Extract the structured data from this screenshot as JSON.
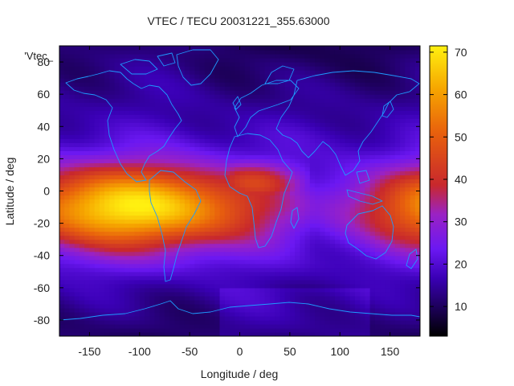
{
  "chart_data": {
    "type": "heatmap",
    "title": "VTEC / TECU 20031221_355.63000",
    "xlabel": "Longitude / deg",
    "ylabel": "Latitude / deg",
    "legend_label": "'Vtec_",
    "xlim": [
      -180,
      180
    ],
    "ylim": [
      -90,
      90
    ],
    "xticks": [
      {
        "value": -150,
        "label": "-150"
      },
      {
        "value": -100,
        "label": "-100"
      },
      {
        "value": -50,
        "label": "-50"
      },
      {
        "value": 0,
        "label": "0"
      },
      {
        "value": 50,
        "label": "50"
      },
      {
        "value": 100,
        "label": "100"
      },
      {
        "value": 150,
        "label": "150"
      }
    ],
    "yticks": [
      {
        "value": 80,
        "label": "80"
      },
      {
        "value": 60,
        "label": "60"
      },
      {
        "value": 40,
        "label": "40"
      },
      {
        "value": 20,
        "label": "20"
      },
      {
        "value": 0,
        "label": "0"
      },
      {
        "value": -20,
        "label": "-20"
      },
      {
        "value": -40,
        "label": "-40"
      },
      {
        "value": -60,
        "label": "-60"
      },
      {
        "value": -80,
        "label": "-80"
      }
    ],
    "colorbar": {
      "range": [
        3,
        71.5
      ],
      "ticks": [
        {
          "value": 10,
          "label": "10"
        },
        {
          "value": 20,
          "label": "20"
        },
        {
          "value": 30,
          "label": "30"
        },
        {
          "value": 40,
          "label": "40"
        },
        {
          "value": 50,
          "label": "50"
        },
        {
          "value": 60,
          "label": "60"
        },
        {
          "value": 70,
          "label": "70"
        }
      ]
    },
    "grid_resolution_deg": {
      "lon": 5,
      "lat": 2.5
    },
    "field_model": {
      "background_tecu": 17,
      "peak_tecu": 70,
      "peak_lon": -105,
      "peak_lat": 0,
      "anomaly_crest_lat": -10,
      "equatorial_band_half_width_deg": 26,
      "lon_falloff_deg": 95,
      "eastern_extension_lon": [
        -60,
        70
      ],
      "eastern_extension_tecu": 40,
      "midlat_troughs_tecu": [
        8,
        10
      ]
    },
    "coastline_color": "#1e9bff"
  }
}
